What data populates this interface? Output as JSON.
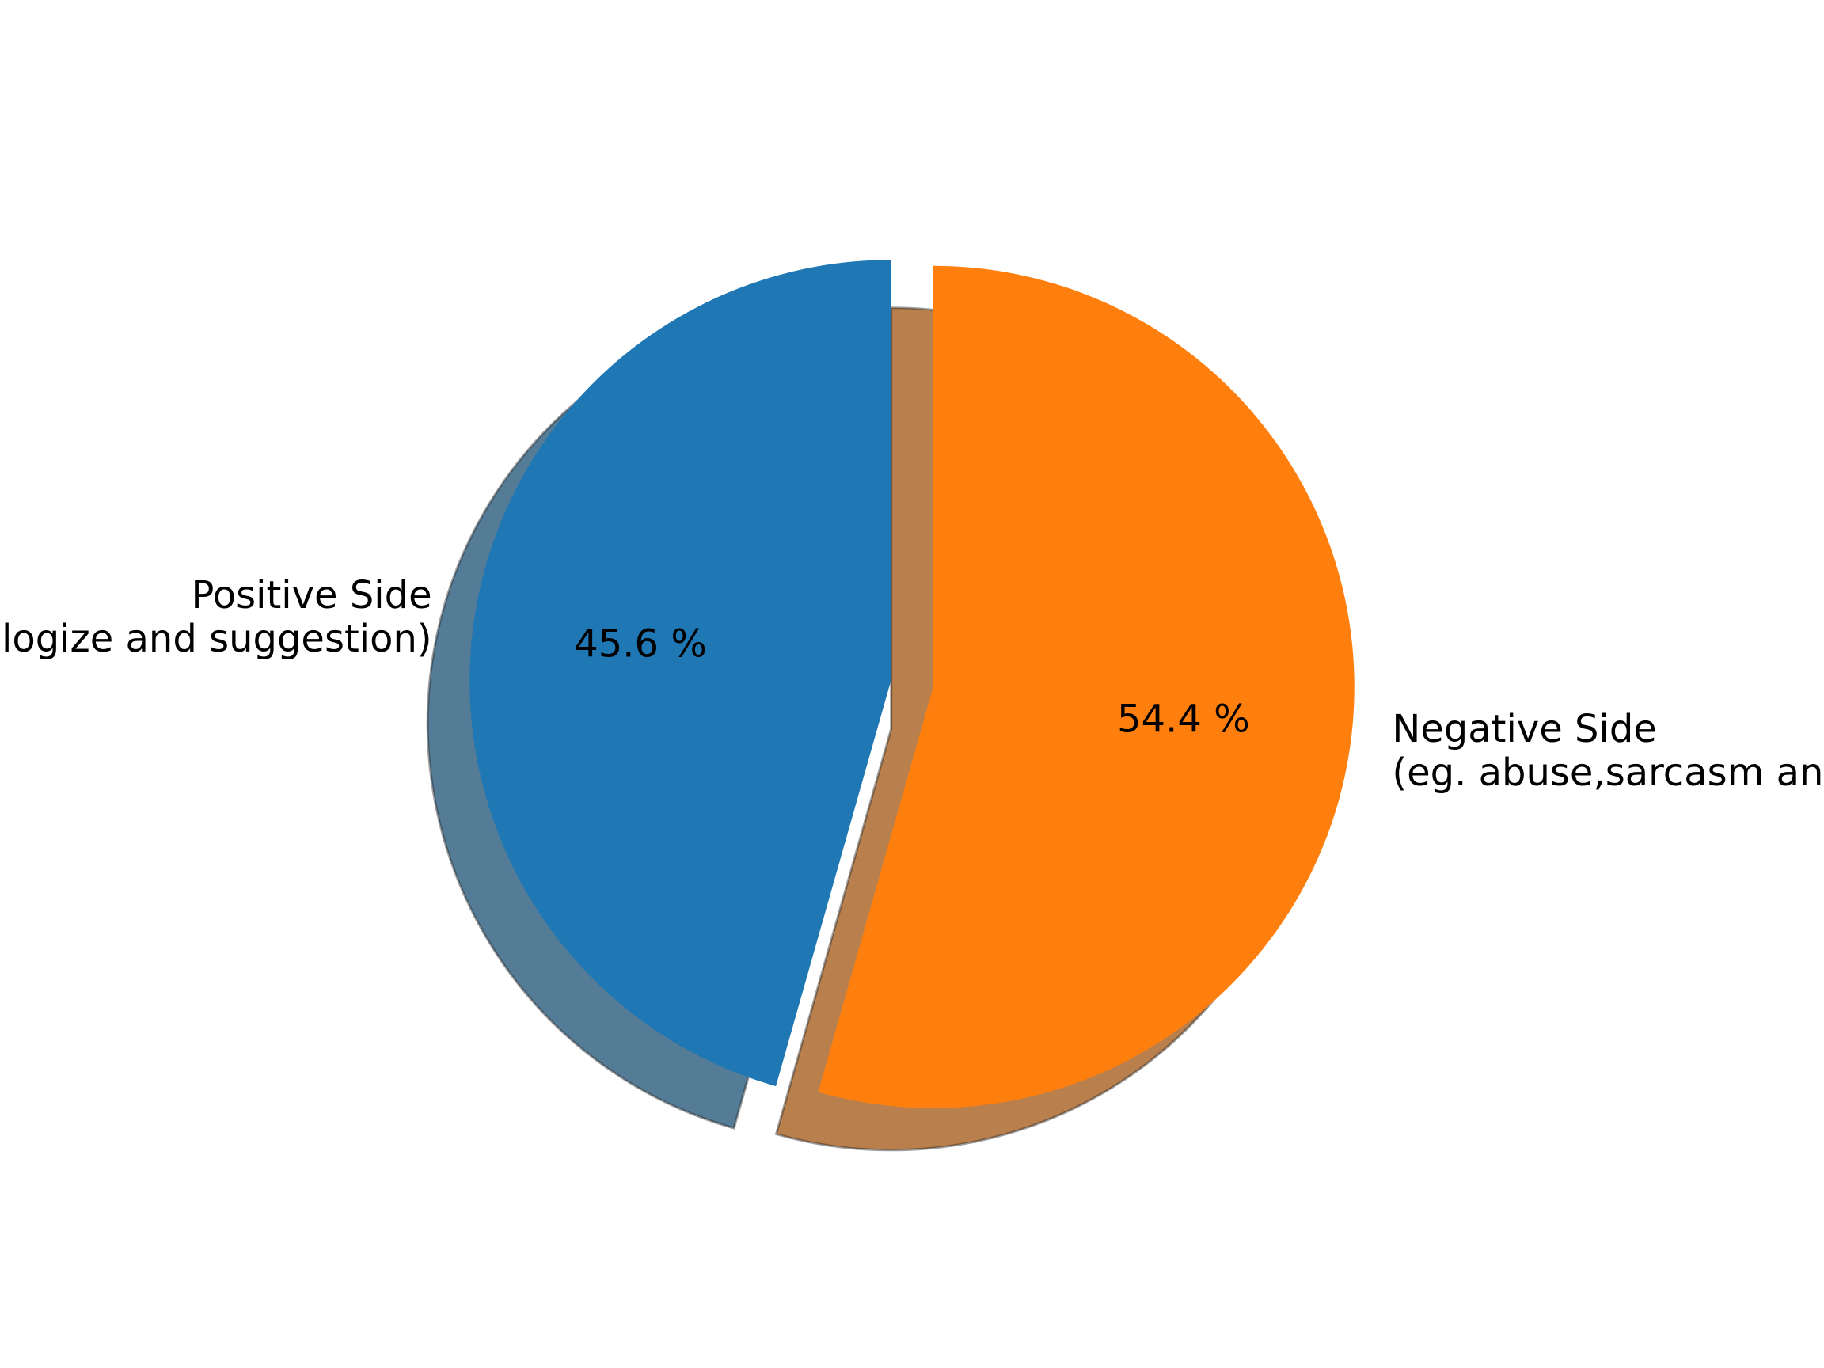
{
  "chart_data": {
    "type": "pie",
    "title": "",
    "slices": [
      {
        "label_lines": [
          "Positive Side",
          "(eg. apologize and suggestion)"
        ],
        "value": 45.6,
        "pct_text": "45.6 %",
        "color": "#1f77b4"
      },
      {
        "label_lines": [
          "Negative Side",
          "(eg. abuse,sarcasm and"
        ],
        "value": 54.4,
        "pct_text": "54.4 %",
        "color": "#ff7f0e"
      }
    ],
    "start_angle": 90,
    "direction": "counterclockwise",
    "exploded": true,
    "shadow": true
  }
}
